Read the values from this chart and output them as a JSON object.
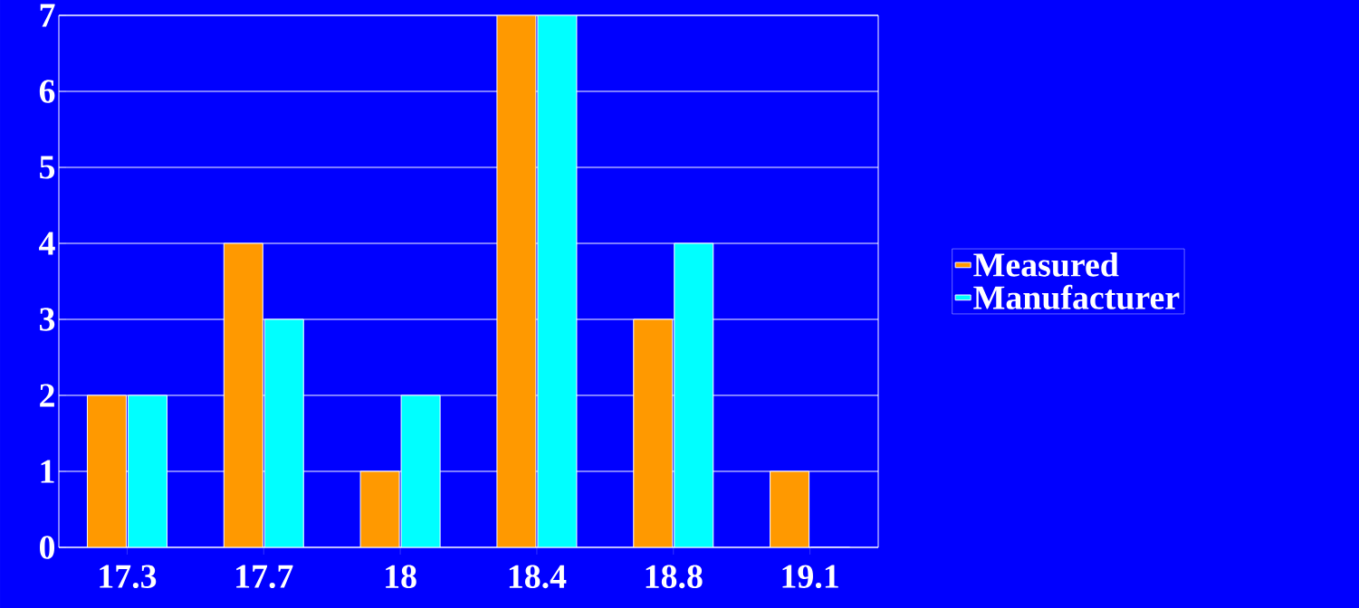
{
  "chart_data": {
    "type": "bar",
    "categories": [
      "17.3",
      "17.7",
      "18",
      "18.4",
      "18.8",
      "19.1"
    ],
    "series": [
      {
        "name": "Measured",
        "color": "#ff9900",
        "values": [
          2,
          4,
          1,
          7,
          3,
          1
        ]
      },
      {
        "name": "Manufacturer",
        "color": "#00ffff",
        "values": [
          2,
          3,
          2,
          7,
          4,
          0
        ]
      }
    ],
    "ylim": [
      0,
      7
    ],
    "yticks": [
      0,
      1,
      2,
      3,
      4,
      5,
      6,
      7
    ],
    "grid": "y",
    "legend": "right"
  }
}
